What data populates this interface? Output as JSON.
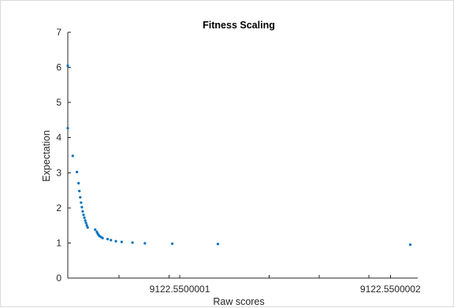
{
  "chart_data": {
    "type": "scatter",
    "title": "Fitness Scaling",
    "xlabel": "Raw scores",
    "ylabel": "Expectation",
    "ylim": [
      0,
      7
    ],
    "xlim_relative_note": "",
    "y_ticks": [
      "0",
      "1",
      "2",
      "3",
      "4",
      "5",
      "6",
      "7"
    ],
    "x_ticks": [
      "9122.5500001",
      "9122.5500002"
    ],
    "marker_color": "#0072bd",
    "grid": false,
    "series": [
      {
        "x": [
          0.0,
          0.0,
          0.06,
          0.11,
          0.13,
          0.14,
          0.15,
          0.16,
          0.17,
          0.18,
          0.19,
          0.2,
          0.21,
          0.22,
          0.23,
          0.24,
          0.33,
          0.35,
          0.36,
          0.37,
          0.38,
          0.4,
          0.42,
          0.48,
          0.52,
          0.58,
          0.65,
          0.78,
          0.93,
          1.26,
          1.81,
          4.13
        ],
        "values": [
          6.05,
          4.27,
          3.48,
          3.02,
          2.7,
          2.48,
          2.3,
          2.15,
          2.02,
          1.9,
          1.8,
          1.72,
          1.64,
          1.57,
          1.5,
          1.44,
          1.38,
          1.32,
          1.27,
          1.23,
          1.2,
          1.17,
          1.14,
          1.11,
          1.08,
          1.05,
          1.03,
          1.01,
          0.99,
          0.98,
          0.97,
          0.95
        ]
      }
    ]
  }
}
